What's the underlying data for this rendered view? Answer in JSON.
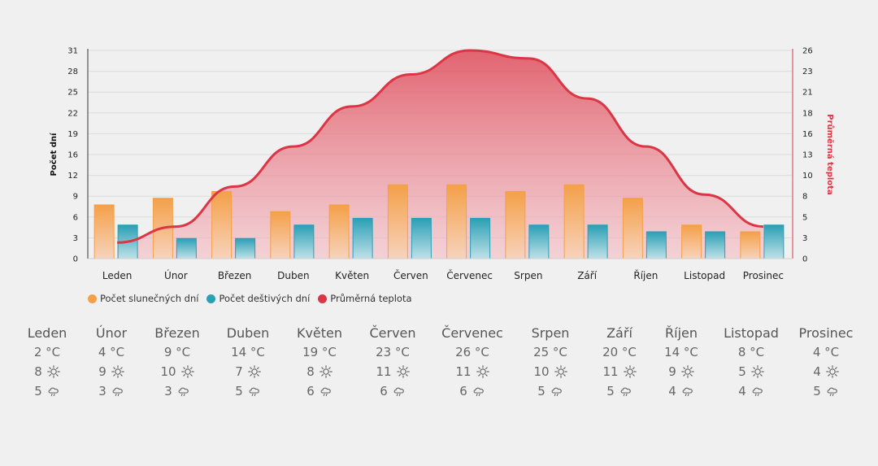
{
  "chart_data": {
    "type": "bar",
    "categories": [
      "Leden",
      "Únor",
      "Březen",
      "Duben",
      "Květen",
      "Červen",
      "Červenec",
      "Srpen",
      "Září",
      "Říjen",
      "Listopad",
      "Prosinec"
    ],
    "series": [
      {
        "name": "Počet slunečných dní",
        "type": "bar",
        "axis": "left",
        "color": "#f4a048",
        "values": [
          8,
          9,
          10,
          7,
          8,
          11,
          11,
          10,
          11,
          9,
          5,
          4
        ]
      },
      {
        "name": "Počet deštivých dní",
        "type": "bar",
        "axis": "left",
        "color": "#2a9fb5",
        "values": [
          5,
          3,
          3,
          5,
          6,
          6,
          6,
          5,
          5,
          4,
          4,
          5
        ]
      },
      {
        "name": "Průměrná teplota",
        "type": "area",
        "axis": "right",
        "color": "#dc3545",
        "values": [
          2,
          4,
          9,
          14,
          19,
          23,
          26,
          25,
          20,
          14,
          8,
          4
        ]
      }
    ],
    "ylabel": "Počet dní",
    "y2label": "Průměrná teplota",
    "ylim": [
      0,
      31
    ],
    "y2lim": [
      0,
      26
    ],
    "yticks": [
      "0",
      "3",
      "6",
      "9",
      "12",
      "16",
      "19",
      "22",
      "25",
      "28",
      "31"
    ],
    "y2ticks": [
      "0",
      "3",
      "5",
      "8",
      "10",
      "13",
      "16",
      "18",
      "21",
      "23",
      "26"
    ],
    "legend_position": "bottom-left",
    "grid": true
  },
  "summary": {
    "temp_unit": "°C",
    "months": [
      {
        "name": "Leden",
        "temp": "2",
        "sunny": "8",
        "rainy": "5"
      },
      {
        "name": "Únor",
        "temp": "4",
        "sunny": "9",
        "rainy": "3"
      },
      {
        "name": "Březen",
        "temp": "9",
        "sunny": "10",
        "rainy": "3"
      },
      {
        "name": "Duben",
        "temp": "14",
        "sunny": "7",
        "rainy": "5"
      },
      {
        "name": "Květen",
        "temp": "19",
        "sunny": "8",
        "rainy": "6"
      },
      {
        "name": "Červen",
        "temp": "23",
        "sunny": "11",
        "rainy": "6"
      },
      {
        "name": "Červenec",
        "temp": "26",
        "sunny": "11",
        "rainy": "6"
      },
      {
        "name": "Srpen",
        "temp": "25",
        "sunny": "10",
        "rainy": "5"
      },
      {
        "name": "Září",
        "temp": "20",
        "sunny": "11",
        "rainy": "5"
      },
      {
        "name": "Říjen",
        "temp": "14",
        "sunny": "9",
        "rainy": "4"
      },
      {
        "name": "Listopad",
        "temp": "8",
        "sunny": "5",
        "rainy": "4"
      },
      {
        "name": "Prosinec",
        "temp": "4",
        "sunny": "4",
        "rainy": "5"
      }
    ],
    "sun_icon": "sun-icon",
    "rain_icon": "cloud-rain-icon"
  }
}
